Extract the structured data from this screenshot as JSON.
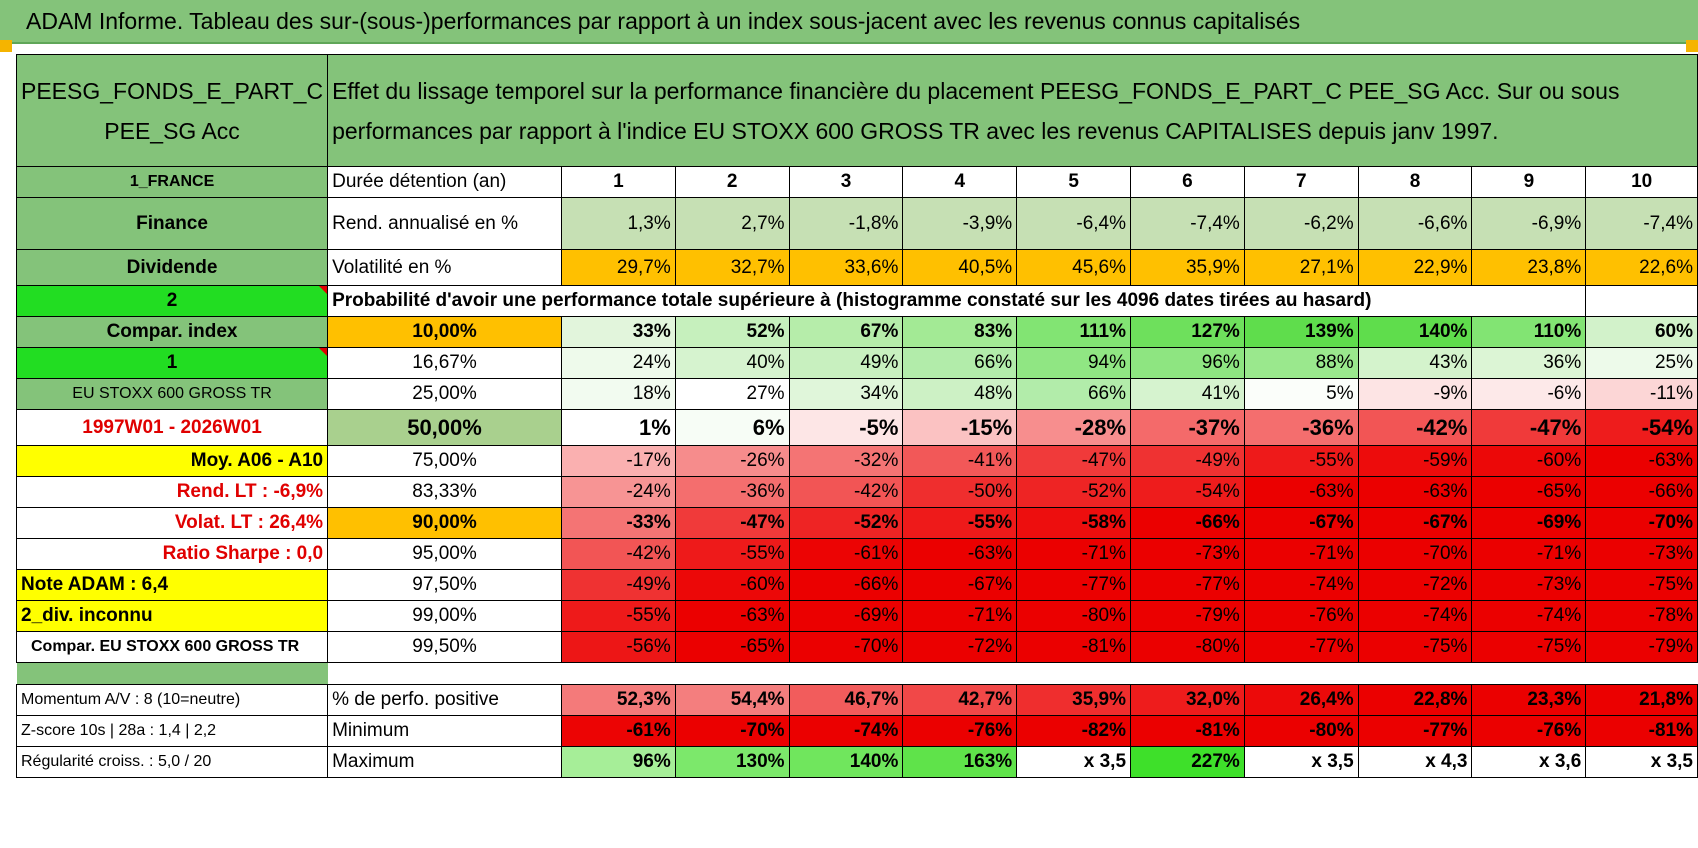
{
  "banner": "ADAM Informe. Tableau des sur-(sous-)performances par rapport à un index sous-jacent avec les revenus connus capitalisés",
  "fund": {
    "name": "PEESG_FONDS_E_PART_C PEE_SG Acc",
    "header_text": "Effet du lissage temporel sur la performance financière du placement PEESG_FONDS_E_PART_C PEE_SG Acc. Sur ou sous performances par rapport à l'indice EU STOXX 600 GROSS TR avec les revenus CAPITALISES depuis janv 1997."
  },
  "left": {
    "country": "1_FRANCE",
    "sector": "Finance",
    "type": "Dividende",
    "spin1": "2",
    "compar_label": "Compar. index",
    "spin2": "1",
    "index_name": "EU STOXX 600 GROSS TR",
    "period": "1997W01 - 2026W01",
    "moy": "Moy. A06 - A10",
    "rend_lt": "Rend. LT :    -6,9%",
    "volat_lt": "Volat. LT :   26,4%",
    "sharpe": "Ratio Sharpe :     0,0",
    "note": "Note ADAM : 6,4",
    "div": "2_div. inconnu",
    "compar_index": "Compar. EU STOXX 600 GROSS TR",
    "momentum": "Momentum A/V : 8 (10=neutre)",
    "zscore": "Z-score 10s | 28a : 1,4 | 2,2",
    "regularite": "Régularité croiss. : 5,0 / 20"
  },
  "labels": {
    "duree": "Durée détention (an)",
    "rend": "Rend. annualisé en %",
    "volat": "Volatilité en %",
    "proba": "Probabilité d'avoir une performance totale supérieure à (histogramme constaté sur les 4096 dates tirées au hasard)",
    "perf_pos": "% de perfo. positive",
    "minimum": "Minimum",
    "maximum": "Maximum"
  },
  "years": [
    "1",
    "2",
    "3",
    "4",
    "5",
    "6",
    "7",
    "8",
    "9",
    "10"
  ],
  "rend": [
    "1,3%",
    "2,7%",
    "-1,8%",
    "-3,9%",
    "-6,4%",
    "-7,4%",
    "-6,2%",
    "-6,6%",
    "-6,9%",
    "-7,4%"
  ],
  "volat": [
    "29,7%",
    "32,7%",
    "33,6%",
    "40,5%",
    "45,6%",
    "35,9%",
    "27,1%",
    "22,9%",
    "23,8%",
    "22,6%"
  ],
  "colors": {
    "green_header": "#84c37a",
    "bright_green": "#22dd22",
    "yellow": "#ffff00",
    "orange": "#ffc000",
    "red_text": "#e00000",
    "rend_bg": "#c6e0b4"
  },
  "prob_rows": [
    {
      "pct": "10,00%",
      "bold": true,
      "pct_bg": "#ffc000",
      "vals": [
        "33%",
        "52%",
        "67%",
        "83%",
        "111%",
        "127%",
        "139%",
        "140%",
        "110%",
        "60%"
      ],
      "bgs": [
        "#e2f5dc",
        "#c6f0bd",
        "#b6edaa",
        "#a3ea95",
        "#82e473",
        "#6ee05c",
        "#5fdd4c",
        "#5fdd4c",
        "#82e473",
        "#d2f2ca"
      ]
    },
    {
      "pct": "16,67%",
      "bold": false,
      "pct_bg": "#ffffff",
      "vals": [
        "24%",
        "40%",
        "49%",
        "66%",
        "94%",
        "96%",
        "88%",
        "43%",
        "36%",
        "25%"
      ],
      "bgs": [
        "#eefaeb",
        "#d6f3cf",
        "#c8f0bf",
        "#b2ecaa",
        "#90e683",
        "#8ee581",
        "#9ae88d",
        "#d4f3cc",
        "#dcf5d5",
        "#edfaea"
      ]
    },
    {
      "pct": "25,00%",
      "bold": false,
      "pct_bg": "#ffffff",
      "vals": [
        "18%",
        "27%",
        "34%",
        "48%",
        "66%",
        "41%",
        "5%",
        "-9%",
        "-6%",
        "-11%"
      ],
      "bgs": [
        "#f2fbf0",
        "#eafaе6",
        "#e0f6da",
        "#cdf1c5",
        "#b2ecaa",
        "#d6f3cf",
        "#fbfefa",
        "#fde4e4",
        "#fde9e9",
        "#fcd6d6"
      ]
    },
    {
      "pct": "50,00%",
      "bold": true,
      "pct_bg": "#a9d08e",
      "vals": [
        "1%",
        "6%",
        "-5%",
        "-15%",
        "-28%",
        "-37%",
        "-36%",
        "-42%",
        "-47%",
        "-54%"
      ],
      "bgs": [
        "#ffffff",
        "#f7fdf6",
        "#fde6e6",
        "#fbc2c2",
        "#f78e8e",
        "#f46a6a",
        "#f46e6e",
        "#f25555",
        "#f03a3a",
        "#ee1c1c"
      ]
    },
    {
      "pct": "75,00%",
      "bold": false,
      "pct_bg": "#ffffff",
      "vals": [
        "-17%",
        "-26%",
        "-32%",
        "-41%",
        "-47%",
        "-49%",
        "-55%",
        "-59%",
        "-60%",
        "-63%"
      ],
      "bgs": [
        "#fab0b0",
        "#f68c8c",
        "#f47474",
        "#f25858",
        "#f03a3a",
        "#ef3232",
        "#ee1a1a",
        "#ed0c0c",
        "#ec0808",
        "#eb0000"
      ]
    },
    {
      "pct": "83,33%",
      "bold": false,
      "pct_bg": "#ffffff",
      "vals": [
        "-24%",
        "-36%",
        "-42%",
        "-50%",
        "-52%",
        "-54%",
        "-63%",
        "-63%",
        "-65%",
        "-66%"
      ],
      "bgs": [
        "#f79494",
        "#f46e6e",
        "#f25555",
        "#ef2e2e",
        "#ee2424",
        "#ee1c1c",
        "#eb0000",
        "#eb0000",
        "#eb0000",
        "#eb0000"
      ]
    },
    {
      "pct": "90,00%",
      "bold": true,
      "pct_bg": "#ffc000",
      "vals": [
        "-33%",
        "-47%",
        "-52%",
        "-55%",
        "-58%",
        "-66%",
        "-67%",
        "-67%",
        "-69%",
        "-70%"
      ],
      "bgs": [
        "#f47474",
        "#f03a3a",
        "#ee2424",
        "#ee1a1a",
        "#ed0e0e",
        "#eb0000",
        "#eb0000",
        "#eb0000",
        "#eb0000",
        "#eb0000"
      ]
    },
    {
      "pct": "95,00%",
      "bold": false,
      "pct_bg": "#ffffff",
      "vals": [
        "-42%",
        "-55%",
        "-61%",
        "-63%",
        "-71%",
        "-73%",
        "-71%",
        "-70%",
        "-71%",
        "-73%"
      ],
      "bgs": [
        "#f25555",
        "#ee1a1a",
        "#ec0404",
        "#eb0000",
        "#eb0000",
        "#eb0000",
        "#eb0000",
        "#eb0000",
        "#eb0000",
        "#eb0000"
      ]
    },
    {
      "pct": "97,50%",
      "bold": false,
      "pct_bg": "#ffffff",
      "vals": [
        "-49%",
        "-60%",
        "-66%",
        "-67%",
        "-77%",
        "-77%",
        "-74%",
        "-72%",
        "-73%",
        "-75%"
      ],
      "bgs": [
        "#ef3232",
        "#ec0808",
        "#eb0000",
        "#eb0000",
        "#eb0000",
        "#eb0000",
        "#eb0000",
        "#eb0000",
        "#eb0000",
        "#eb0000"
      ]
    },
    {
      "pct": "99,00%",
      "bold": false,
      "pct_bg": "#ffffff",
      "vals": [
        "-55%",
        "-63%",
        "-69%",
        "-71%",
        "-80%",
        "-79%",
        "-76%",
        "-74%",
        "-74%",
        "-78%"
      ],
      "bgs": [
        "#ee1a1a",
        "#eb0000",
        "#eb0000",
        "#eb0000",
        "#eb0000",
        "#eb0000",
        "#eb0000",
        "#eb0000",
        "#eb0000",
        "#eb0000"
      ]
    },
    {
      "pct": "99,50%",
      "bold": false,
      "pct_bg": "#ffffff",
      "vals": [
        "-56%",
        "-65%",
        "-70%",
        "-72%",
        "-81%",
        "-80%",
        "-77%",
        "-75%",
        "-75%",
        "-79%"
      ],
      "bgs": [
        "#ed1616",
        "#eb0000",
        "#eb0000",
        "#eb0000",
        "#eb0000",
        "#eb0000",
        "#eb0000",
        "#eb0000",
        "#eb0000",
        "#eb0000"
      ]
    }
  ],
  "perf_pos": {
    "vals": [
      "52,3%",
      "54,4%",
      "46,7%",
      "42,7%",
      "35,9%",
      "32,0%",
      "26,4%",
      "22,8%",
      "23,3%",
      "21,8%"
    ],
    "bgs": [
      "#f47a7a",
      "#f47e7e",
      "#f25c5c",
      "#f14848",
      "#ef2e2e",
      "#ee1c1c",
      "#ec0a0a",
      "#eb0000",
      "#eb0000",
      "#eb0000"
    ]
  },
  "minimum": {
    "vals": [
      "-61%",
      "-70%",
      "-74%",
      "-76%",
      "-82%",
      "-81%",
      "-80%",
      "-77%",
      "-76%",
      "-81%"
    ],
    "bgs": [
      "#ec0404",
      "#eb0000",
      "#eb0000",
      "#eb0000",
      "#eb0000",
      "#eb0000",
      "#eb0000",
      "#eb0000",
      "#eb0000",
      "#eb0000"
    ]
  },
  "maximum": {
    "vals": [
      "96%",
      "130%",
      "140%",
      "163%",
      "x 3,5",
      "227%",
      "x 3,5",
      "x 4,3",
      "x 3,6",
      "x 3,5"
    ],
    "bgs": [
      "#a6ee98",
      "#7ce86b",
      "#70e65d",
      "#5fe34a",
      "#ffffff",
      "#3ee02a",
      "#ffffff",
      "#ffffff",
      "#ffffff",
      "#ffffff"
    ]
  }
}
